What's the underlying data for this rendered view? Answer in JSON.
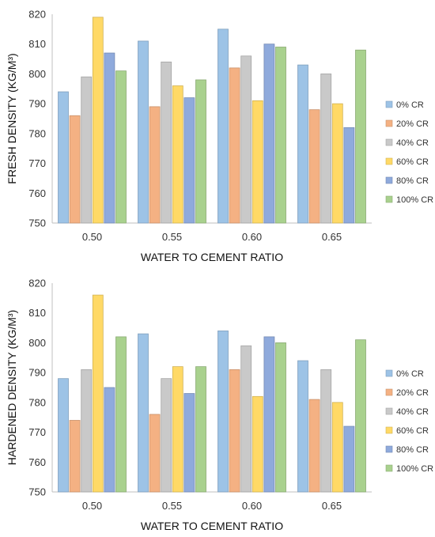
{
  "chart_data": [
    {
      "type": "bar",
      "xlabel": "WATER TO CEMENT RATIO",
      "ylabel": "FRESH DENSITY (KG/M³)",
      "ylim": [
        750,
        820
      ],
      "yticks": [
        750,
        760,
        770,
        780,
        790,
        800,
        810,
        820
      ],
      "categories": [
        "0.50",
        "0.55",
        "0.60",
        "0.65"
      ],
      "legend_position": "right",
      "grid": false,
      "series": [
        {
          "name": "0% CR",
          "color": "#9DC3E6",
          "values": [
            794,
            811,
            815,
            803
          ]
        },
        {
          "name": "20% CR",
          "color": "#F4B183",
          "values": [
            786,
            789,
            802,
            788
          ]
        },
        {
          "name": "40% CR",
          "color": "#C9C9C9",
          "values": [
            799,
            804,
            806,
            800
          ]
        },
        {
          "name": "60% CR",
          "color": "#FFD966",
          "values": [
            819,
            796,
            791,
            790
          ]
        },
        {
          "name": "80% CR",
          "color": "#8FAADC",
          "values": [
            807,
            792,
            810,
            782
          ]
        },
        {
          "name": "100% CR",
          "color": "#A9D18E",
          "values": [
            801,
            798,
            809,
            808
          ]
        }
      ]
    },
    {
      "type": "bar",
      "xlabel": "WATER TO CEMENT RATIO",
      "ylabel": "HARDENED DENSITY (KG/M³)",
      "ylim": [
        750,
        820
      ],
      "yticks": [
        750,
        760,
        770,
        780,
        790,
        800,
        810,
        820
      ],
      "categories": [
        "0.50",
        "0.55",
        "0.60",
        "0.65"
      ],
      "legend_position": "right",
      "grid": false,
      "series": [
        {
          "name": "0% CR",
          "color": "#9DC3E6",
          "values": [
            788,
            803,
            804,
            794
          ]
        },
        {
          "name": "20% CR",
          "color": "#F4B183",
          "values": [
            774,
            776,
            791,
            781
          ]
        },
        {
          "name": "40% CR",
          "color": "#C9C9C9",
          "values": [
            791,
            788,
            799,
            791
          ]
        },
        {
          "name": "60% CR",
          "color": "#FFD966",
          "values": [
            816,
            792,
            782,
            780
          ]
        },
        {
          "name": "80% CR",
          "color": "#8FAADC",
          "values": [
            785,
            783,
            802,
            772
          ]
        },
        {
          "name": "100% CR",
          "color": "#A9D18E",
          "values": [
            802,
            792,
            800,
            801
          ]
        }
      ]
    }
  ]
}
